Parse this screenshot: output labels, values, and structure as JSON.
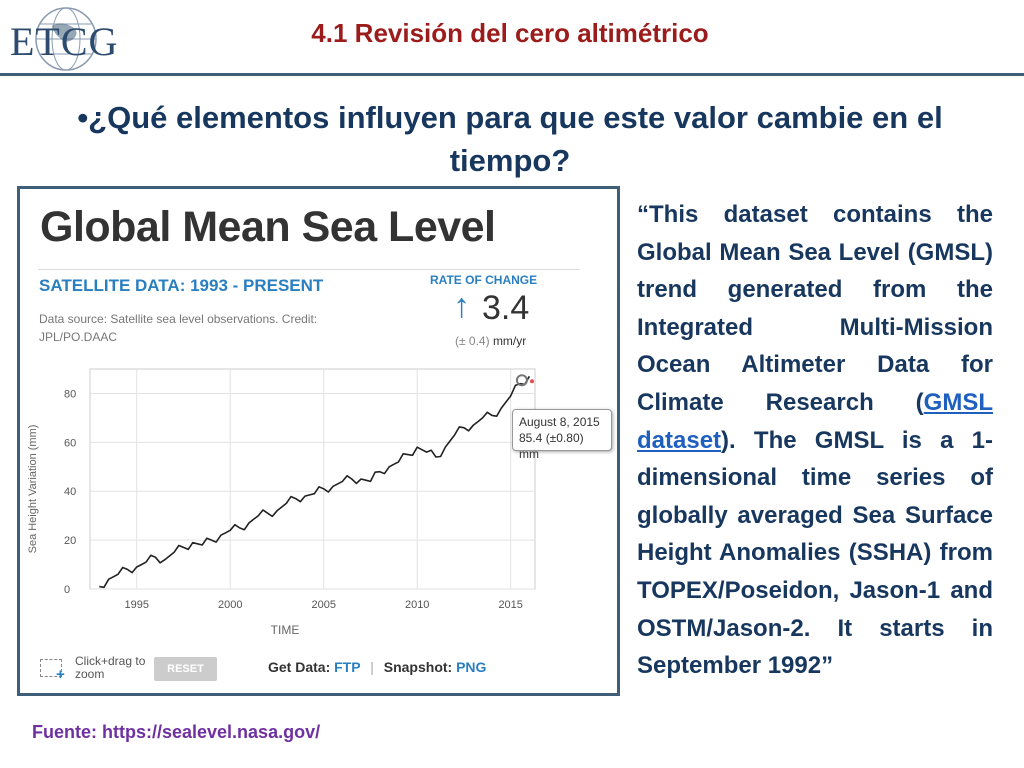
{
  "header": {
    "logo_text": "ETCG",
    "title": "4.1 Revisión del cero altimétrico"
  },
  "question": "•¿Qué elementos influyen para que este valor cambie en el tiempo?",
  "chart_panel": {
    "heading": "Global Mean Sea Level",
    "subtitle": "SATELLITE DATA: 1993 - PRESENT",
    "source": "Data source: Satellite sea level observations. Credit: JPL/PO.DAAC",
    "rate_label": "RATE OF CHANGE",
    "rate_arrow": "↑",
    "rate_value": "3.4",
    "rate_uncertainty": "(± 0.4)",
    "rate_unit": "mm/yr",
    "tooltip": {
      "date": "August 8, 2015",
      "value": "85.4 (±0.80) mm"
    },
    "zoom_hint": "Click+drag to zoom",
    "zoom_plus": "+",
    "reset_label": "RESET",
    "get_data_label": "Get Data:",
    "ftp_label": "FTP",
    "separator": "|",
    "snapshot_label": "Snapshot:",
    "png_label": "PNG"
  },
  "chart_data": {
    "type": "line",
    "title": "Global Mean Sea Level",
    "xlabel": "TIME",
    "ylabel": "Sea Height Variation (mm)",
    "xlim": [
      1992.5,
      2016.3
    ],
    "ylim": [
      0,
      90
    ],
    "xticks": [
      1995,
      2000,
      2005,
      2010,
      2015
    ],
    "yticks": [
      0,
      20,
      40,
      60,
      80
    ],
    "grid": true,
    "series": [
      {
        "color": "#222222",
        "x": [
          1993.0,
          1993.5,
          1994.0,
          1994.5,
          1995.0,
          1995.5,
          1996.0,
          1996.5,
          1997.0,
          1997.5,
          1998.0,
          1998.5,
          1999.0,
          1999.5,
          2000.0,
          2000.5,
          2001.0,
          2001.5,
          2002.0,
          2002.5,
          2003.0,
          2003.5,
          2004.0,
          2004.5,
          2005.0,
          2005.5,
          2006.0,
          2006.5,
          2007.0,
          2007.5,
          2008.0,
          2008.5,
          2009.0,
          2009.5,
          2010.0,
          2010.5,
          2011.0,
          2011.5,
          2012.0,
          2012.5,
          2013.0,
          2013.5,
          2014.0,
          2014.5,
          2015.0,
          2015.5,
          2016.0
        ],
        "y": [
          1,
          4,
          6,
          8,
          9,
          11,
          13,
          12,
          15,
          17,
          19,
          18,
          20,
          22,
          24,
          25,
          27,
          30,
          31,
          32,
          35,
          37,
          38,
          39,
          41,
          42,
          44,
          45,
          45,
          44,
          48,
          50,
          52,
          55,
          58,
          56,
          54,
          58,
          63,
          66,
          67,
          70,
          71,
          74,
          79,
          84,
          87
        ]
      }
    ],
    "highlight_point": {
      "x": 2015.6,
      "y": 85.4
    }
  },
  "description": {
    "before_link": "“This dataset contains the Global Mean Sea Level (GMSL) trend generated from the Integrated Multi-Mission Ocean Altimeter Data for Climate Research (",
    "link": "GMSL dataset",
    "after_link": "). The GMSL is a 1-dimensional time series of globally averaged Sea Surface Height Anomalies (SSHA) from TOPEX/Poseidon, Jason-1 and OSTM/Jason-2. It starts in September 1992”"
  },
  "footer_source": "Fuente: https://sealevel.nasa.gov/"
}
